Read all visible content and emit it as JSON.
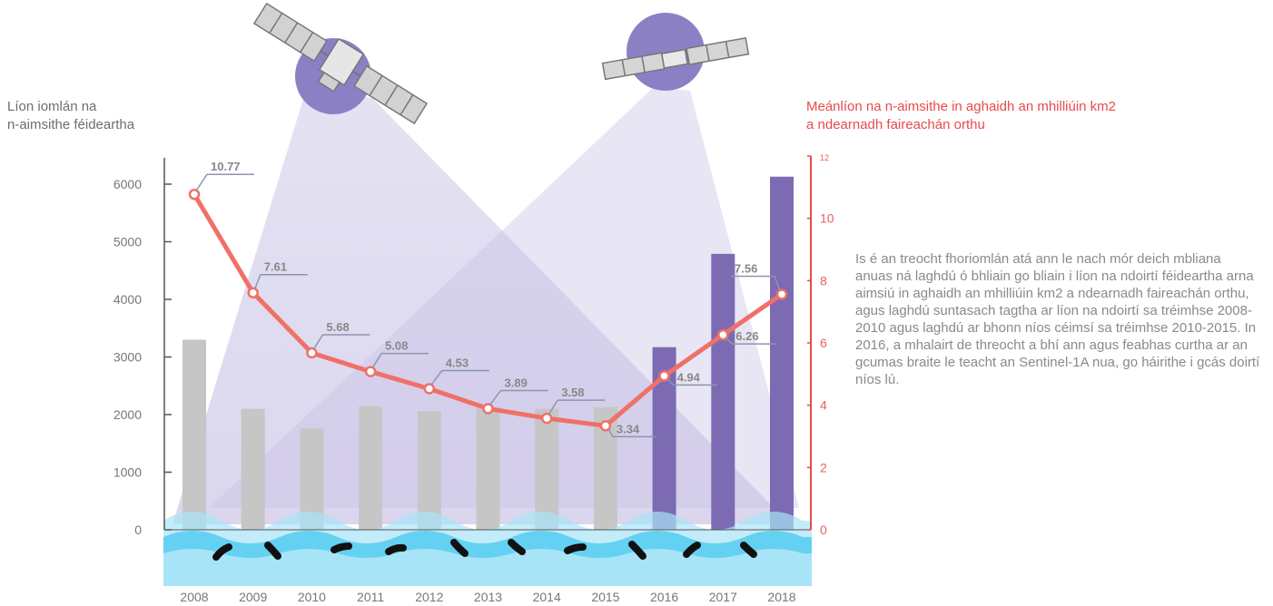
{
  "chart_data": {
    "type": "bar",
    "categories": [
      "2008",
      "2009",
      "2010",
      "2011",
      "2012",
      "2013",
      "2014",
      "2015",
      "2016",
      "2017",
      "2018"
    ],
    "series": [
      {
        "name": "Líon iomlán na n-aimsithe féideartha",
        "axis": "left",
        "type": "bar",
        "values": [
          3300,
          2100,
          1760,
          2140,
          2060,
          2120,
          2100,
          2130,
          3170,
          4790,
          6130
        ]
      },
      {
        "name": "Meánlíon na n-aimsithe in aghaidh an mhilliúin km2 a ndearnadh faireachán orthu",
        "axis": "right",
        "type": "line",
        "values": [
          10.77,
          7.61,
          5.68,
          5.08,
          4.53,
          3.89,
          3.58,
          3.34,
          4.94,
          6.26,
          7.56
        ],
        "labels": [
          "10.77",
          "7.61",
          "5.68",
          "5.08",
          "4.53",
          "3.89",
          "3.58",
          "3.34",
          "4.94",
          "6.26",
          "7.56"
        ]
      }
    ],
    "left_axis": {
      "title_lines": [
        "Líon iomlán na",
        "n-aimsithe féideartha"
      ],
      "ticks": [
        "0",
        "1000",
        "2000",
        "3000",
        "4000",
        "5000",
        "6000"
      ],
      "range": [
        0,
        6000
      ]
    },
    "right_axis": {
      "title_lines": [
        "Meánlíon na n-aimsithe in aghaidh an mhilliúin km2",
        "a ndearnadh faireachán orthu"
      ],
      "ticks": [
        "0",
        "2",
        "4",
        "6",
        "8",
        "10",
        "12"
      ],
      "range": [
        0,
        12
      ]
    },
    "grid": false,
    "bar_colors": {
      "default": "#c6c6c6",
      "highlight": "#7c6bb3"
    },
    "line_color": "#f07068",
    "axis_line_color": "#e84b4b",
    "note": "Is é an treocht fhoriomlán atá ann le nach mór deich mbliana anuas ná laghdú ó bhliain go bliain i líon na ndoirtí féideartha arna aimsiú in aghaidh an mhilliúin km2 a ndearnadh faireachán orthu, agus laghdú suntasach tagtha ar líon na ndoirtí sa tréimhse 2008-2010 agus laghdú ar bhonn níos céimsí sa tréimhse 2010-2015. In 2016, a mhalairt de threocht a bhí ann agus feabhas curtha ar an gcumas braite le teacht an Sentinel-1A  nua, go háirithe i gcás doirtí níos lú."
  }
}
